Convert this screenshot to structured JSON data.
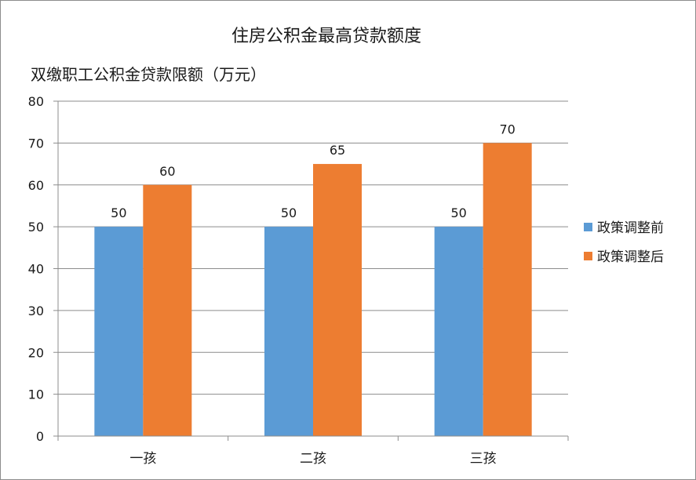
{
  "chart_data": {
    "type": "bar",
    "title": "住房公积金最高贷款额度",
    "ylabel": "双缴职工公积金贷款限额（万元）",
    "xlabel": "",
    "categories": [
      "一孩",
      "二孩",
      "三孩"
    ],
    "series": [
      {
        "name": "政策调整前",
        "color": "#5b9bd5",
        "values": [
          50,
          50,
          50
        ]
      },
      {
        "name": "政策调整后",
        "color": "#ed7d31",
        "values": [
          60,
          65,
          70
        ]
      }
    ],
    "ylim": [
      0,
      80
    ],
    "yticks": [
      0,
      10,
      20,
      30,
      40,
      50,
      60,
      70,
      80
    ],
    "grid": true,
    "legend": "right",
    "data_labels": true
  }
}
